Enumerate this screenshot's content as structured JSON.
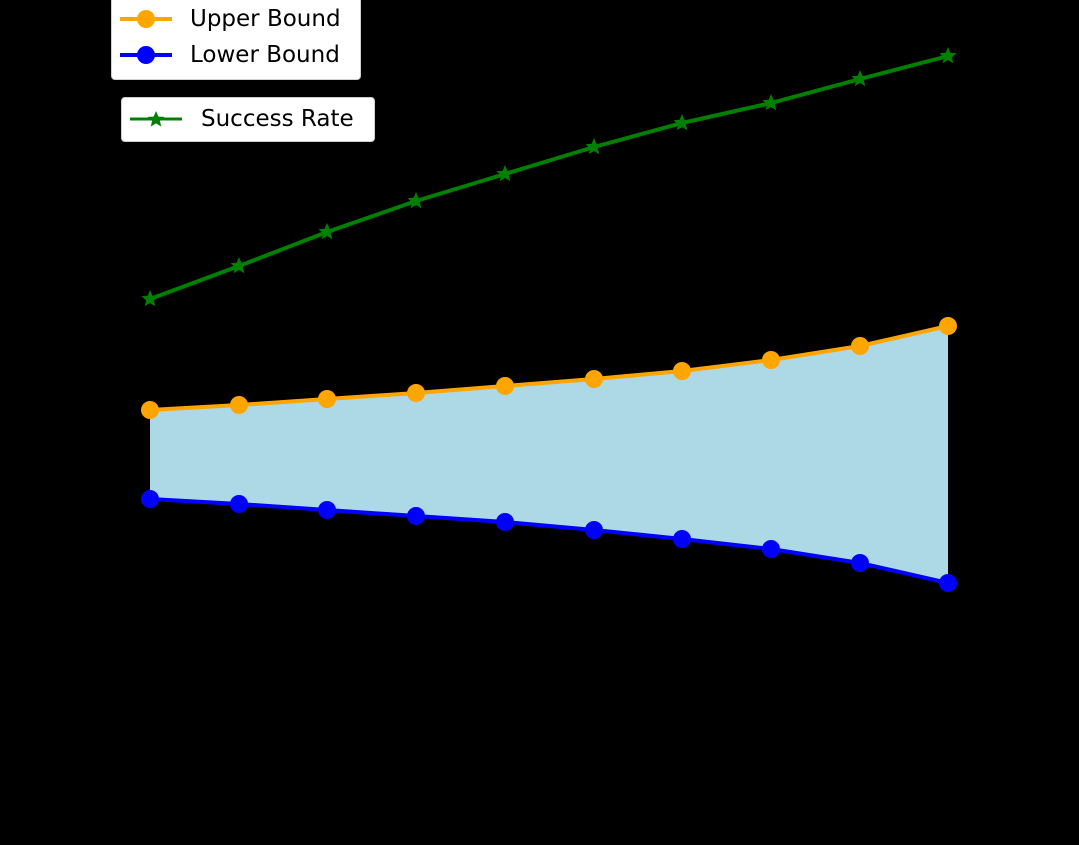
{
  "colors": {
    "background": "#000000",
    "upper": "#FFA500",
    "lower": "#0000FF",
    "success": "#008000",
    "fill": "#ADD8E6",
    "legend_bg": "#FFFFFF"
  },
  "legend_primary": {
    "items": [
      {
        "label": "Upper Bound",
        "marker": "circle",
        "color": "#FFA500"
      },
      {
        "label": "Lower Bound",
        "marker": "circle",
        "color": "#0000FF"
      }
    ]
  },
  "legend_secondary": {
    "items": [
      {
        "label": "Success Rate",
        "marker": "star",
        "color": "#008000"
      }
    ]
  },
  "chart_data": {
    "type": "line",
    "title": "",
    "xlabel": "",
    "ylabel": "",
    "note_axes": "Axis lines, tick labels and titles are black on a black (transparent) background and are not visible; values below are relative readings (x as point index, y in relative units, higher = up).",
    "x": [
      1,
      2,
      3,
      4,
      5,
      6,
      7,
      8,
      9,
      10
    ],
    "series": [
      {
        "name": "Success Rate",
        "marker": "star",
        "color": "#008000",
        "axis": "secondary",
        "values": [
          546,
          579,
          613,
          644,
          671,
          698,
          722,
          742,
          766,
          789
        ]
      },
      {
        "name": "Upper Bound",
        "marker": "circle",
        "color": "#FFA500",
        "axis": "primary",
        "values": [
          435,
          440,
          446,
          452,
          459,
          466,
          474,
          485,
          499,
          519
        ]
      },
      {
        "name": "Lower Bound",
        "marker": "circle",
        "color": "#0000FF",
        "axis": "primary",
        "values": [
          346,
          341,
          335,
          329,
          323,
          315,
          306,
          296,
          282,
          262
        ]
      }
    ],
    "fill_between": {
      "upper": "Upper Bound",
      "lower": "Lower Bound",
      "color": "#ADD8E6"
    },
    "legend_position": "upper left (two stacked legends)",
    "grid": false
  },
  "plot_pixels": {
    "x": [
      150,
      239,
      327,
      416,
      505,
      594,
      682,
      771,
      860,
      948
    ],
    "success": [
      299,
      266,
      232,
      201,
      174,
      147,
      123,
      103,
      79,
      56
    ],
    "upper": [
      410,
      405,
      399,
      393,
      386,
      379,
      371,
      360,
      346,
      326
    ],
    "lower": [
      499,
      504,
      510,
      516,
      522,
      530,
      539,
      549,
      563,
      583
    ]
  }
}
